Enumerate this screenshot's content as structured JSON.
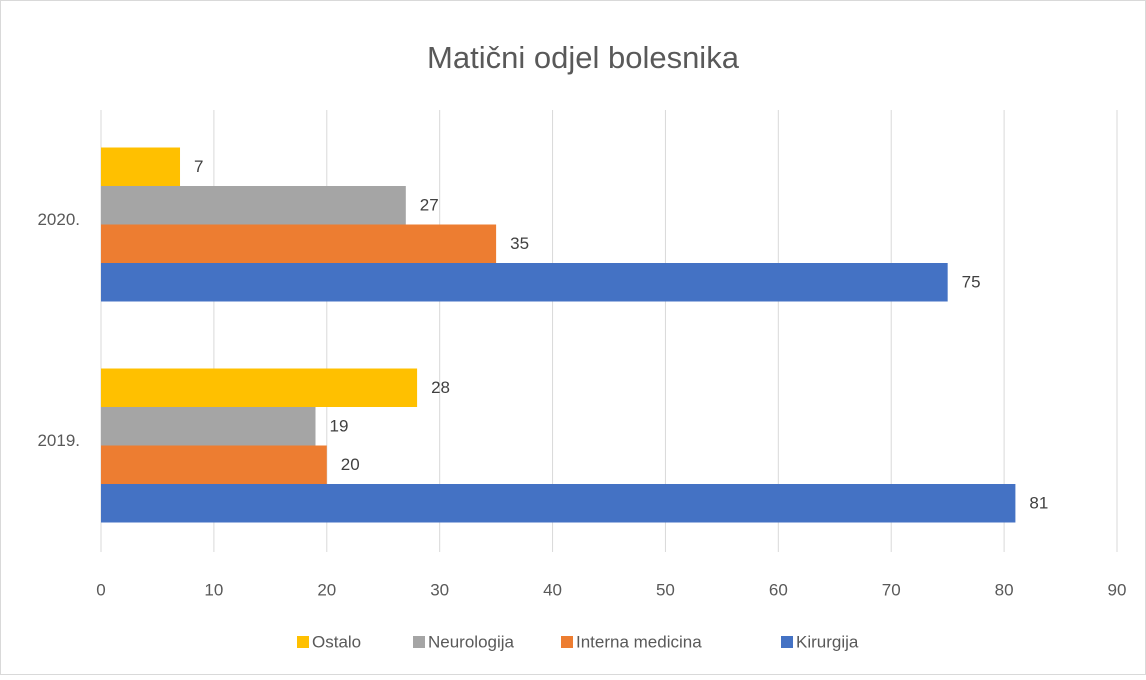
{
  "chart_data": {
    "type": "bar",
    "orientation": "horizontal",
    "title": "Matični odjel bolesnika",
    "categories": [
      "2019.",
      "2020."
    ],
    "series": [
      {
        "name": "Ostalo",
        "color": "#FFC000",
        "values": [
          28,
          7
        ]
      },
      {
        "name": "Neurologija",
        "color": "#A5A5A5",
        "values": [
          19,
          27
        ]
      },
      {
        "name": "Interna medicina",
        "color": "#ED7D31",
        "values": [
          20,
          35
        ]
      },
      {
        "name": "Kirurgija",
        "color": "#4472C4",
        "values": [
          81,
          75
        ]
      }
    ],
    "xlim": [
      0,
      90
    ],
    "xticks": [
      0,
      10,
      20,
      30,
      40,
      50,
      60,
      70,
      80,
      90
    ],
    "grid": true,
    "legend": "bottom"
  }
}
